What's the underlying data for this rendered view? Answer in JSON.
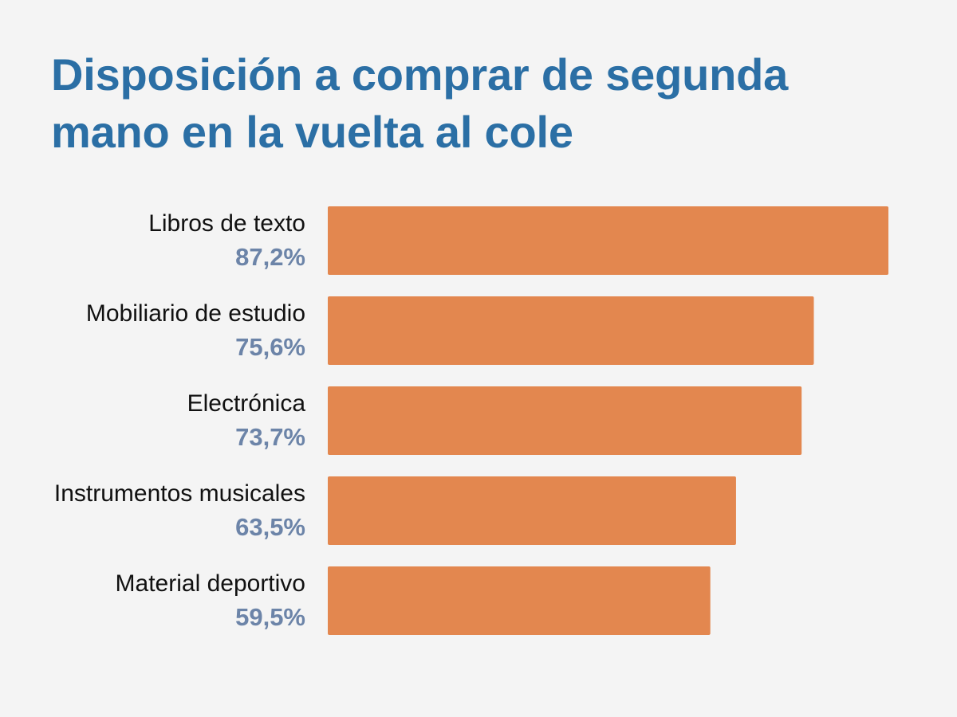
{
  "chart_data": {
    "type": "bar",
    "orientation": "horizontal",
    "title": "Disposición a comprar de segunda mano en la vuelta al cole",
    "categories": [
      "Libros de texto",
      "Mobiliario de estudio",
      "Electrónica",
      "Instrumentos musicales",
      "Material deportivo"
    ],
    "values": [
      87.2,
      75.6,
      73.7,
      63.5,
      59.5
    ],
    "value_labels": [
      "87,2%",
      "75,6%",
      "73,7%",
      "63,5%",
      "59,5%"
    ],
    "unit": "%",
    "xlim": [
      0,
      87.2
    ],
    "grid": false,
    "legend": "none",
    "colors": {
      "bar": "#e3874f",
      "title": "#2b6fa5",
      "category_text": "#111111",
      "value_text": "#6c84a8",
      "background": "#f4f4f4"
    }
  }
}
